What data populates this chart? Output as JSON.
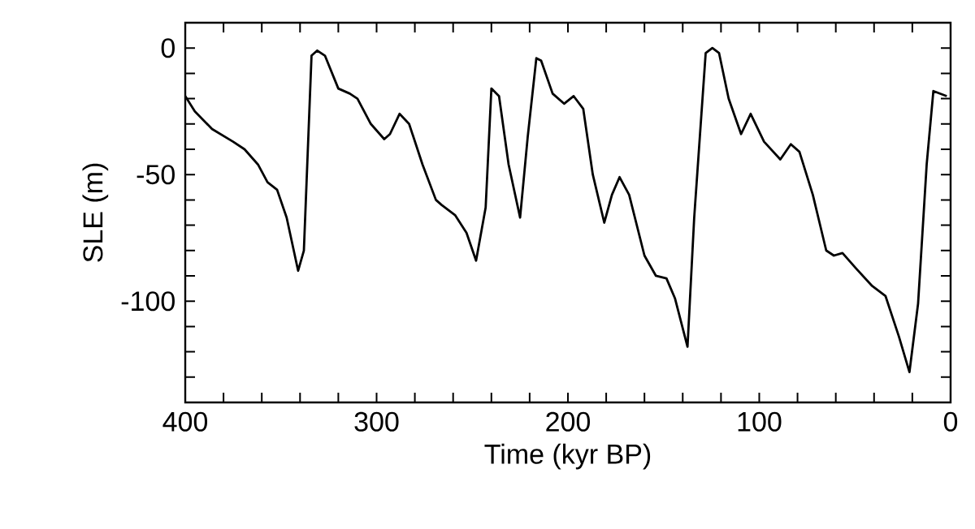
{
  "chart_data": {
    "type": "line",
    "xlabel": "Time (kyr BP)",
    "ylabel": "SLE (m)",
    "xlim": [
      400,
      0
    ],
    "ylim": [
      -140,
      10
    ],
    "xticks": [
      400,
      {
        "value": 380,
        "label": null
      },
      {
        "value": 360,
        "label": null
      },
      {
        "value": 340,
        "label": null
      },
      {
        "value": 320,
        "label": null
      },
      300,
      {
        "value": 280,
        "label": null
      },
      {
        "value": 260,
        "label": null
      },
      {
        "value": 240,
        "label": null
      },
      {
        "value": 220,
        "label": null
      },
      200,
      {
        "value": 180,
        "label": null
      },
      {
        "value": 160,
        "label": null
      },
      {
        "value": 140,
        "label": null
      },
      {
        "value": 120,
        "label": null
      },
      100,
      {
        "value": 80,
        "label": null
      },
      {
        "value": 60,
        "label": null
      },
      {
        "value": 40,
        "label": null
      },
      {
        "value": 20,
        "label": null
      },
      0
    ],
    "yticks": [
      {
        "value": -130,
        "label": null
      },
      {
        "value": -120,
        "label": null
      },
      {
        "value": -110,
        "label": null
      },
      -100,
      {
        "value": -90,
        "label": null
      },
      {
        "value": -80,
        "label": null
      },
      {
        "value": -70,
        "label": null
      },
      {
        "value": -60,
        "label": null
      },
      -50,
      {
        "value": -40,
        "label": null
      },
      {
        "value": -30,
        "label": null
      },
      {
        "value": -20,
        "label": null
      },
      {
        "value": -10,
        "label": null
      },
      0
    ],
    "grid": false,
    "marker": "none",
    "line_style": "solid",
    "series": [
      {
        "color": "#000000",
        "x": [
          400,
          395,
          386,
          375,
          369,
          362,
          357,
          352,
          347,
          341,
          338,
          334,
          331,
          327,
          320,
          314,
          310,
          303,
          296,
          293,
          288,
          283,
          276,
          269,
          266,
          259,
          253,
          248,
          243,
          240,
          236,
          231,
          225,
          221,
          216.5,
          214,
          208,
          202,
          197,
          192,
          187,
          181,
          177,
          173,
          168,
          160,
          154,
          148.5,
          144,
          137.5,
          134,
          128,
          124.5,
          121,
          116,
          109.5,
          104.5,
          97.5,
          89,
          83.5,
          79,
          72,
          65,
          61,
          56.5,
          49.5,
          41,
          34,
          27,
          21.5,
          17,
          12.5,
          9,
          5.5,
          2
        ],
        "values": [
          -19,
          -25,
          -32,
          -37,
          -40,
          -46,
          -53,
          -56,
          -67,
          -88,
          -80,
          -3,
          -1,
          -3,
          -16,
          -18,
          -20,
          -30,
          -36,
          -34,
          -26,
          -30,
          -46,
          -60,
          -62,
          -66,
          -73,
          -84,
          -63,
          -16,
          -19,
          -46,
          -67,
          -35,
          -4,
          -5,
          -18,
          -22,
          -19,
          -24,
          -50,
          -69,
          -58,
          -51,
          -58,
          -82,
          -90,
          -91,
          -99,
          -118,
          -67,
          -2,
          0,
          -2,
          -20,
          -34,
          -26,
          -37,
          -44,
          -38,
          -41,
          -58,
          -80,
          -82,
          -81,
          -87,
          -94,
          -98,
          -114,
          -128,
          -101,
          -46,
          -17,
          -18,
          -19
        ]
      }
    ]
  }
}
